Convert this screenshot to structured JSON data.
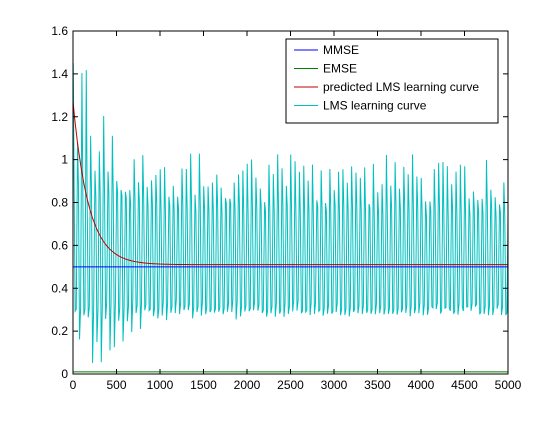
{
  "colors": {
    "background": "#ffffff",
    "axes": "#000000",
    "mmse": "#0000ff",
    "emse": "#007f00",
    "predicted": "#bf0000",
    "lms": "#00bfbf"
  },
  "chart_data": {
    "type": "line",
    "title": "",
    "xlabel": "",
    "ylabel": "",
    "xlim": [
      0,
      5000
    ],
    "ylim": [
      0,
      1.6
    ],
    "grid": false,
    "legend_position": "top-right",
    "x_ticks": [
      0,
      500,
      1000,
      1500,
      2000,
      2500,
      3000,
      3500,
      4000,
      4500,
      5000
    ],
    "x_tick_labels": [
      "0",
      "500",
      "1000",
      "1500",
      "2000",
      "2500",
      "3000",
      "3500",
      "4000",
      "4500",
      "5000"
    ],
    "y_ticks": [
      0,
      0.2,
      0.4,
      0.6,
      0.8,
      1,
      1.2,
      1.4,
      1.6
    ],
    "y_tick_labels": [
      "0",
      "0.2",
      "0.4",
      "0.6",
      "0.8",
      "1",
      "1.2",
      "1.4",
      "1.6"
    ],
    "series": [
      {
        "name": "MMSE",
        "color": "#0000ff",
        "kind": "constant",
        "value": 0.5
      },
      {
        "name": "EMSE",
        "color": "#007f00",
        "kind": "constant",
        "value": 0.01
      },
      {
        "name": "predicted LMS learning curve",
        "color": "#bf0000",
        "kind": "exponential",
        "start": 1.27,
        "asymptote": 0.51,
        "time_constant": 180
      },
      {
        "name": "LMS learning curve",
        "color": "#00bfbf",
        "kind": "oscillation",
        "period": 50,
        "upper_envelope": [
          [
            0,
            1.55
          ],
          [
            100,
            1.5
          ],
          [
            300,
            1.25
          ],
          [
            600,
            1.1
          ],
          [
            1000,
            1.05
          ],
          [
            2000,
            1.03
          ],
          [
            5000,
            1.03
          ]
        ],
        "lower_envelope": [
          [
            0,
            0.0
          ],
          [
            200,
            0.02
          ],
          [
            400,
            0.08
          ],
          [
            700,
            0.18
          ],
          [
            1000,
            0.25
          ],
          [
            5000,
            0.27
          ]
        ],
        "mid_band_upper": [
          [
            0,
            0.9
          ],
          [
            1000,
            0.8
          ],
          [
            5000,
            0.78
          ]
        ],
        "mid_band_lower": [
          [
            0,
            0.3
          ],
          [
            1000,
            0.3
          ],
          [
            5000,
            0.28
          ]
        ]
      }
    ]
  }
}
